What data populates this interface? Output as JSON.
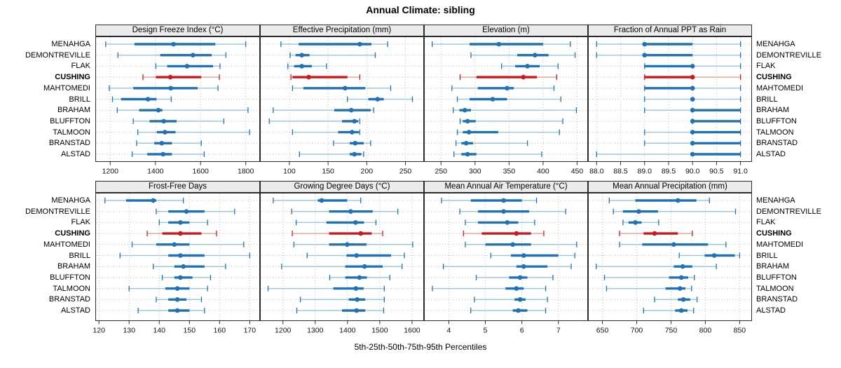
{
  "title": "Annual Climate: sibling",
  "caption": "5th-25th-50th-75th-95th Percentiles",
  "colors": {
    "blue": "#2171b5",
    "blue_light": "#9ecae1",
    "red": "#cb181d",
    "red_light": "#eba49f",
    "header_bg": "#ebebeb",
    "panel_border": "#2b2b2b",
    "grid": "#bdbdbd"
  },
  "chart_data": {
    "type": "dotplot",
    "layout": "2x4 trellis of percentile dot-whisker plots, stations on shared y axis, CUSHING highlighted in red",
    "legend_position": "none",
    "grid": "dotted",
    "percentiles": [
      "5th",
      "25th",
      "50th",
      "75th",
      "95th"
    ],
    "stations": [
      "MENAHGA",
      "DEMONTREVILLE",
      "FLAK",
      "CUSHING",
      "MAHTOMEDI",
      "BRILL",
      "BRAHAM",
      "BLUFFTON",
      "TALMOON",
      "BRANSTAD",
      "ALSTAD"
    ],
    "highlight_station": "CUSHING",
    "panels": [
      {
        "title": "Design Freeze Index (°C)",
        "ticks": [
          1200,
          1400,
          1600,
          1800
        ],
        "tick_labels": [
          "1200",
          "1400",
          "1600",
          "1800"
        ],
        "axis_domain": [
          1134,
          1863
        ],
        "values": [
          [
            1180,
            1307,
            1480,
            1665,
            1800
          ],
          [
            1234,
            1421,
            1566,
            1649,
            1712
          ],
          [
            1402,
            1452,
            1540,
            1655,
            1686
          ],
          [
            1345,
            1402,
            1466,
            1603,
            1683
          ],
          [
            1196,
            1302,
            1468,
            1587,
            1677
          ],
          [
            1210,
            1248,
            1367,
            1405,
            1470
          ],
          [
            1231,
            1328,
            1413,
            1431,
            1810
          ],
          [
            1302,
            1374,
            1437,
            1494,
            1703
          ],
          [
            1322,
            1406,
            1442,
            1489,
            1817
          ],
          [
            1317,
            1395,
            1428,
            1473,
            1603
          ],
          [
            1297,
            1364,
            1434,
            1473,
            1616
          ]
        ]
      },
      {
        "title": "Effective Precipitation (mm)",
        "ticks": [
          100,
          150,
          200,
          250
        ],
        "tick_labels": [
          "100",
          "150",
          "200",
          "250"
        ],
        "axis_domain": [
          62,
          274
        ],
        "values": [
          [
            89,
            112,
            191,
            206,
            227
          ],
          [
            101,
            108,
            116,
            126,
            211
          ],
          [
            98,
            106,
            116,
            129,
            148
          ],
          [
            102,
            104,
            125,
            175,
            191
          ],
          [
            104,
            118,
            172,
            198,
            231
          ],
          [
            175,
            202,
            214,
            222,
            259
          ],
          [
            79,
            158,
            180,
            205,
            209
          ],
          [
            74,
            168,
            184,
            189,
            191
          ],
          [
            104,
            163,
            181,
            190,
            191
          ],
          [
            157,
            178,
            185,
            196,
            205
          ],
          [
            113,
            178,
            184,
            193,
            196
          ]
        ]
      },
      {
        "title": "Elevation (m)",
        "ticks": [
          250,
          300,
          350,
          400,
          450
        ],
        "tick_labels": [
          "250",
          "300",
          "350",
          "400",
          "450"
        ],
        "axis_domain": [
          225,
          466
        ],
        "values": [
          [
            237,
            292,
            335,
            400,
            440
          ],
          [
            294,
            362,
            388,
            408,
            447
          ],
          [
            339,
            359,
            377,
            395,
            422
          ],
          [
            278,
            302,
            371,
            391,
            420
          ],
          [
            266,
            304,
            347,
            357,
            416
          ],
          [
            274,
            292,
            326,
            347,
            426
          ],
          [
            268,
            277,
            285,
            294,
            449
          ],
          [
            278,
            282,
            289,
            301,
            429
          ],
          [
            274,
            282,
            291,
            334,
            424
          ],
          [
            272,
            280,
            287,
            297,
            377
          ],
          [
            269,
            280,
            289,
            302,
            398
          ]
        ]
      },
      {
        "title": "Fraction of Annual PPT as Rain",
        "ticks": [
          88,
          88.5,
          89,
          89.5,
          90,
          90.5,
          91
        ],
        "tick_labels": [
          "88.0",
          "88.5",
          "89.0",
          "89.5",
          "90.0",
          "90.5",
          "91.0"
        ],
        "axis_domain": [
          87.82,
          91.24
        ],
        "values": [
          [
            88,
            89,
            89,
            90,
            91
          ],
          [
            88,
            89,
            89,
            90,
            91
          ],
          [
            89,
            89,
            90,
            90,
            91
          ],
          [
            89,
            89,
            90,
            90,
            91
          ],
          [
            89,
            89,
            90,
            90,
            91
          ],
          [
            89,
            90,
            90,
            90,
            91
          ],
          [
            89,
            90,
            90,
            91,
            91
          ],
          [
            90,
            90,
            90,
            91,
            91
          ],
          [
            89,
            90,
            90,
            91,
            91
          ],
          [
            89,
            90,
            90,
            91,
            91
          ],
          [
            88,
            90,
            90,
            91,
            91
          ]
        ]
      },
      {
        "title": "Frost-Free Days",
        "ticks": [
          120,
          130,
          140,
          150,
          160,
          170
        ],
        "tick_labels": [
          "120",
          "130",
          "140",
          "150",
          "160",
          "170"
        ],
        "axis_domain": [
          118.8,
          173.4
        ],
        "values": [
          [
            122,
            129,
            138,
            139,
            148
          ],
          [
            139,
            143,
            149,
            155,
            165
          ],
          [
            140,
            143,
            147,
            150,
            156
          ],
          [
            136,
            141,
            147,
            154,
            159
          ],
          [
            131,
            139,
            145,
            150,
            168
          ],
          [
            127,
            143,
            147,
            155,
            170
          ],
          [
            138,
            145,
            148,
            155,
            162
          ],
          [
            141,
            145,
            147,
            151,
            157
          ],
          [
            130,
            142,
            146,
            150,
            156
          ],
          [
            139,
            143,
            146,
            149,
            154
          ],
          [
            133,
            143,
            146,
            150,
            155
          ]
        ]
      },
      {
        "title": "Growing Degree Days (°C)",
        "ticks": [
          1200,
          1300,
          1400,
          1500,
          1600
        ],
        "tick_labels": [
          "1200",
          "1300",
          "1400",
          "1500",
          "1600"
        ],
        "axis_domain": [
          1129,
          1637
        ],
        "values": [
          [
            1170,
            1308,
            1320,
            1399,
            1441
          ],
          [
            1227,
            1343,
            1410,
            1478,
            1556
          ],
          [
            1241,
            1335,
            1425,
            1451,
            1488
          ],
          [
            1229,
            1343,
            1441,
            1475,
            1509
          ],
          [
            1234,
            1343,
            1399,
            1459,
            1602
          ],
          [
            1275,
            1397,
            1428,
            1535,
            1576
          ],
          [
            1196,
            1393,
            1453,
            1509,
            1569
          ],
          [
            1345,
            1393,
            1437,
            1460,
            1531
          ],
          [
            1154,
            1356,
            1426,
            1450,
            1514
          ],
          [
            1254,
            1404,
            1430,
            1455,
            1514
          ],
          [
            1243,
            1383,
            1428,
            1455,
            1512
          ]
        ]
      },
      {
        "title": "Mean Annual Air Temperature (°C)",
        "ticks": [
          4,
          5,
          6,
          7
        ],
        "tick_labels": [
          "4",
          "5",
          "6",
          "7"
        ],
        "axis_domain": [
          3.32,
          7.81
        ],
        "values": [
          [
            3.8,
            4.6,
            5.5,
            6.0,
            6.4
          ],
          [
            4.3,
            4.8,
            5.5,
            6.2,
            7.2
          ],
          [
            4.45,
            4.8,
            5.6,
            5.9,
            6.35
          ],
          [
            4.4,
            4.9,
            5.85,
            6.25,
            6.6
          ],
          [
            4.45,
            5.0,
            5.75,
            6.25,
            7.5
          ],
          [
            5.15,
            5.7,
            6.05,
            7.0,
            7.45
          ],
          [
            3.85,
            5.85,
            6.05,
            6.7,
            7.35
          ],
          [
            4.75,
            5.65,
            5.95,
            6.15,
            6.85
          ],
          [
            3.55,
            5.55,
            5.85,
            6.05,
            6.65
          ],
          [
            4.7,
            5.8,
            5.95,
            6.1,
            6.7
          ],
          [
            4.6,
            5.75,
            5.9,
            6.15,
            6.65
          ]
        ]
      },
      {
        "title": "Mean Annual Precipitation (mm)",
        "ticks": [
          650,
          700,
          750,
          800,
          850
        ],
        "tick_labels": [
          "650",
          "700",
          "750",
          "800",
          "850"
        ],
        "axis_domain": [
          629,
          868
        ],
        "values": [
          [
            660,
            698,
            760,
            787,
            806
          ],
          [
            666,
            680,
            703,
            731,
            844
          ],
          [
            680,
            688,
            698,
            707,
            732
          ],
          [
            675,
            710,
            726,
            760,
            781
          ],
          [
            675,
            708,
            754,
            804,
            830
          ],
          [
            762,
            799,
            813,
            843,
            850
          ],
          [
            641,
            754,
            767,
            781,
            816
          ],
          [
            653,
            747,
            765,
            775,
            784
          ],
          [
            656,
            742,
            763,
            771,
            780
          ],
          [
            726,
            760,
            768,
            778,
            788
          ],
          [
            710,
            756,
            765,
            774,
            783
          ]
        ]
      }
    ]
  }
}
